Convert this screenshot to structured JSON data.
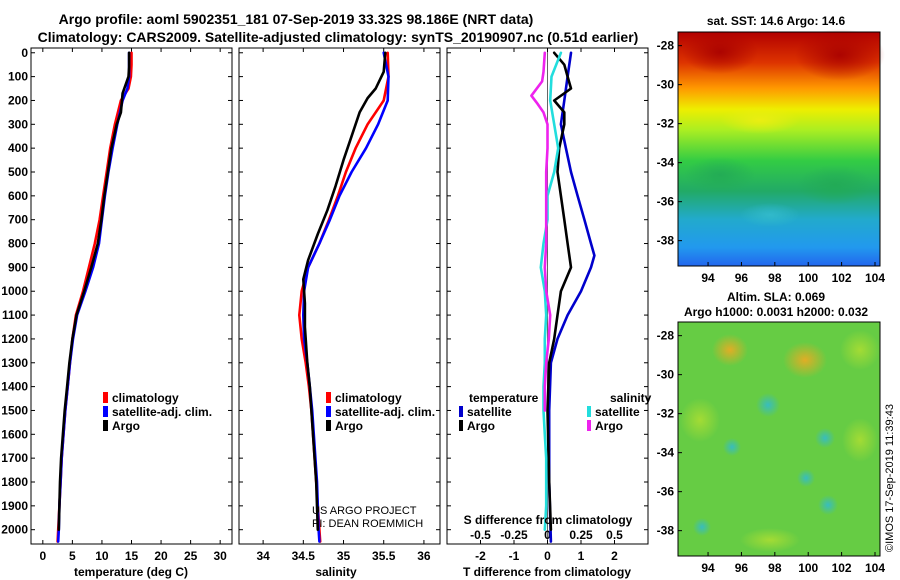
{
  "colors": {
    "climatology": "#ff0000",
    "satellite": "#0000ff",
    "argo": "#000000",
    "t_satellite": "#0000cc",
    "s_satellite": "#22dddd",
    "s_argo": "#ee22ee"
  },
  "title": {
    "line1": "Argo profile: aoml 5902351_181 07-Sep-2019 33.32S 98.186E (NRT data)",
    "line2": "Climatology: CARS2009. Satellite-adjusted climatology: synTS_20190907.nc (0.51d earlier)"
  },
  "depth_ticks": [
    "0",
    "100",
    "200",
    "300",
    "400",
    "500",
    "600",
    "700",
    "800",
    "900",
    "1000",
    "1100",
    "1200",
    "1300",
    "1400",
    "1500",
    "1600",
    "1700",
    "1800",
    "1900",
    "2000"
  ],
  "chart_data": [
    {
      "type": "line",
      "name": "temperature",
      "xlabel": "temperature (deg C)",
      "ylabel": "depth",
      "xlim": [
        -2,
        32
      ],
      "ylim": [
        2060,
        -20
      ],
      "xticks": [
        0,
        5,
        10,
        15,
        20,
        25,
        30
      ],
      "xtick_labels": [
        "0",
        "5",
        "10",
        "15",
        "20",
        "25",
        "30"
      ],
      "legend": [
        "climatology",
        "satellite-adj. clim.",
        "Argo"
      ],
      "series": [
        {
          "name": "climatology",
          "color": "climatology",
          "points": [
            [
              15,
              0
            ],
            [
              15,
              50
            ],
            [
              14.9,
              100
            ],
            [
              14.5,
              150
            ],
            [
              13.2,
              200
            ],
            [
              12.2,
              300
            ],
            [
              11.4,
              400
            ],
            [
              10.8,
              500
            ],
            [
              10.2,
              600
            ],
            [
              9.6,
              700
            ],
            [
              8.8,
              800
            ],
            [
              7.8,
              900
            ],
            [
              6.8,
              1000
            ],
            [
              5.6,
              1100
            ],
            [
              5,
              1200
            ],
            [
              4.6,
              1300
            ],
            [
              4.2,
              1400
            ],
            [
              3.8,
              1500
            ],
            [
              3.5,
              1600
            ],
            [
              3.2,
              1700
            ],
            [
              3,
              1800
            ],
            [
              2.8,
              1900
            ],
            [
              2.6,
              2000
            ],
            [
              2.5,
              2050
            ]
          ]
        },
        {
          "name": "satellite-adj. clim.",
          "color": "satellite",
          "points": [
            [
              14.6,
              0
            ],
            [
              14.6,
              50
            ],
            [
              14.6,
              100
            ],
            [
              14.3,
              150
            ],
            [
              13.5,
              200
            ],
            [
              12.6,
              300
            ],
            [
              11.8,
              400
            ],
            [
              11.1,
              500
            ],
            [
              10.5,
              600
            ],
            [
              10,
              700
            ],
            [
              9.5,
              800
            ],
            [
              8.5,
              900
            ],
            [
              7.2,
              1000
            ],
            [
              5.8,
              1100
            ],
            [
              5.1,
              1200
            ],
            [
              4.6,
              1300
            ],
            [
              4.2,
              1400
            ],
            [
              3.8,
              1500
            ],
            [
              3.5,
              1600
            ],
            [
              3.2,
              1700
            ],
            [
              3,
              1800
            ],
            [
              2.8,
              1900
            ],
            [
              2.7,
              2000
            ],
            [
              2.6,
              2050
            ]
          ]
        },
        {
          "name": "Argo",
          "color": "argo",
          "points": [
            [
              14.6,
              0
            ],
            [
              14.6,
              60
            ],
            [
              14.5,
              100
            ],
            [
              13.5,
              170
            ],
            [
              13.2,
              250
            ],
            [
              12.5,
              300
            ],
            [
              11.6,
              400
            ],
            [
              11,
              500
            ],
            [
              10.4,
              600
            ],
            [
              9.9,
              700
            ],
            [
              9.3,
              800
            ],
            [
              8.2,
              900
            ],
            [
              7,
              1000
            ],
            [
              5.7,
              1100
            ],
            [
              5,
              1200
            ],
            [
              4.5,
              1300
            ],
            [
              4.1,
              1400
            ],
            [
              3.7,
              1500
            ],
            [
              3.4,
              1600
            ],
            [
              3.1,
              1700
            ],
            [
              2.9,
              1800
            ],
            [
              2.8,
              1900
            ],
            [
              2.7,
              2000
            ]
          ]
        }
      ]
    },
    {
      "type": "line",
      "name": "salinity",
      "xlabel": "salinity",
      "ylabel": "depth",
      "xlim": [
        33.7,
        36.2
      ],
      "ylim": [
        2060,
        -20
      ],
      "xticks": [
        34,
        34.5,
        35,
        35.5,
        36
      ],
      "xtick_labels": [
        "34",
        "34.5",
        "35",
        "35.5",
        "36"
      ],
      "legend": [
        "climatology",
        "satellite-adj. clim.",
        "Argo"
      ],
      "credit": [
        "US ARGO PROJECT",
        "PI: DEAN ROEMMICH"
      ],
      "series": [
        {
          "name": "climatology",
          "color": "climatology",
          "points": [
            [
              35.55,
              0
            ],
            [
              35.56,
              100
            ],
            [
              35.5,
              200
            ],
            [
              35.3,
              300
            ],
            [
              35.15,
              400
            ],
            [
              35.03,
              500
            ],
            [
              34.93,
              600
            ],
            [
              34.82,
              700
            ],
            [
              34.7,
              800
            ],
            [
              34.56,
              900
            ],
            [
              34.48,
              1000
            ],
            [
              34.45,
              1100
            ],
            [
              34.48,
              1200
            ],
            [
              34.53,
              1300
            ],
            [
              34.57,
              1400
            ],
            [
              34.6,
              1500
            ],
            [
              34.62,
              1600
            ],
            [
              34.64,
              1700
            ],
            [
              34.66,
              1800
            ],
            [
              34.68,
              1900
            ],
            [
              34.7,
              2000
            ],
            [
              34.71,
              2050
            ]
          ]
        },
        {
          "name": "satellite-adj. clim.",
          "color": "satellite",
          "points": [
            [
              35.5,
              0
            ],
            [
              35.56,
              100
            ],
            [
              35.55,
              200
            ],
            [
              35.43,
              300
            ],
            [
              35.28,
              400
            ],
            [
              35.1,
              500
            ],
            [
              34.95,
              600
            ],
            [
              34.83,
              700
            ],
            [
              34.7,
              800
            ],
            [
              34.56,
              900
            ],
            [
              34.51,
              1000
            ],
            [
              34.5,
              1100
            ],
            [
              34.51,
              1200
            ],
            [
              34.55,
              1300
            ],
            [
              34.58,
              1400
            ],
            [
              34.61,
              1500
            ],
            [
              34.63,
              1600
            ],
            [
              34.65,
              1700
            ],
            [
              34.67,
              1800
            ],
            [
              34.68,
              1900
            ],
            [
              34.69,
              2000
            ],
            [
              34.7,
              2050
            ]
          ]
        },
        {
          "name": "Argo",
          "color": "argo",
          "points": [
            [
              35.52,
              0
            ],
            [
              35.5,
              80
            ],
            [
              35.4,
              150
            ],
            [
              35.3,
              190
            ],
            [
              35.2,
              250
            ],
            [
              35.1,
              350
            ],
            [
              35.0,
              450
            ],
            [
              34.9,
              560
            ],
            [
              34.8,
              660
            ],
            [
              34.68,
              760
            ],
            [
              34.56,
              870
            ],
            [
              34.5,
              950
            ],
            [
              34.52,
              1050
            ],
            [
              34.52,
              1150
            ],
            [
              34.55,
              1300
            ],
            [
              34.58,
              1400
            ],
            [
              34.6,
              1500
            ],
            [
              34.62,
              1600
            ],
            [
              34.64,
              1700
            ],
            [
              34.66,
              1800
            ],
            [
              34.67,
              1900
            ],
            [
              34.68,
              2000
            ]
          ]
        }
      ]
    },
    {
      "type": "line",
      "name": "differences",
      "xlabel_bottom": "T difference from climatology",
      "xlabel_top": "S difference from climatology",
      "ylabel": "depth",
      "xlim": [
        -3,
        3
      ],
      "ylim": [
        2060,
        -20
      ],
      "xticks": [
        -2,
        -1,
        0,
        1,
        2
      ],
      "xtick_labels": [
        "-2",
        "-1",
        "0",
        "1",
        "2"
      ],
      "s_xticks": [
        -0.5,
        -0.25,
        0,
        0.25,
        0.5
      ],
      "s_xtick_labels": [
        "-0.5",
        "-0.25",
        "0",
        "0.25",
        "0.5"
      ],
      "s_scale": 4,
      "legend_temperature": {
        "title": "temperature",
        "items": [
          "satellite",
          "Argo"
        ]
      },
      "legend_salinity": {
        "title": "salinity",
        "items": [
          "satellite",
          "Argo"
        ]
      },
      "series": [
        {
          "name": "T satellite",
          "color": "t_satellite",
          "points": [
            [
              0.7,
              0
            ],
            [
              0.6,
              100
            ],
            [
              0.5,
              200
            ],
            [
              0.4,
              300
            ],
            [
              0.55,
              400
            ],
            [
              0.7,
              500
            ],
            [
              0.9,
              600
            ],
            [
              1.1,
              700
            ],
            [
              1.3,
              800
            ],
            [
              1.4,
              850
            ],
            [
              1.3,
              900
            ],
            [
              1.0,
              1000
            ],
            [
              0.6,
              1100
            ],
            [
              0.3,
              1200
            ],
            [
              0.1,
              1300
            ],
            [
              0.05,
              1500
            ],
            [
              0.05,
              1800
            ],
            [
              0.1,
              2050
            ]
          ]
        },
        {
          "name": "T Argo",
          "color": "argo",
          "points": [
            [
              0.2,
              0
            ],
            [
              0.5,
              50
            ],
            [
              0.6,
              100
            ],
            [
              0.7,
              150
            ],
            [
              0.2,
              200
            ],
            [
              0.5,
              250
            ],
            [
              0.5,
              300
            ],
            [
              0.35,
              400
            ],
            [
              0.3,
              500
            ],
            [
              0.4,
              600
            ],
            [
              0.5,
              700
            ],
            [
              0.6,
              800
            ],
            [
              0.7,
              900
            ],
            [
              0.4,
              1000
            ],
            [
              0.3,
              1100
            ],
            [
              0.2,
              1200
            ],
            [
              0.05,
              1300
            ],
            [
              0.0,
              1500
            ],
            [
              0.05,
              1800
            ],
            [
              0.1,
              2000
            ]
          ]
        },
        {
          "name": "S satellite",
          "color": "s_satellite",
          "points": [
            [
              0.1,
              0
            ],
            [
              0.03,
              100
            ],
            [
              0.02,
              200
            ],
            [
              0.05,
              300
            ],
            [
              0.08,
              400
            ],
            [
              0.05,
              500
            ],
            [
              0.0,
              600
            ],
            [
              0.0,
              700
            ],
            [
              -0.03,
              800
            ],
            [
              -0.05,
              900
            ],
            [
              -0.02,
              1000
            ],
            [
              -0.01,
              1100
            ],
            [
              -0.02,
              1200
            ],
            [
              -0.02,
              1300
            ],
            [
              -0.03,
              1400
            ],
            [
              -0.03,
              1500
            ],
            [
              -0.02,
              1600
            ],
            [
              -0.01,
              1700
            ],
            [
              -0.01,
              1800
            ],
            [
              -0.01,
              1900
            ],
            [
              -0.02,
              2000
            ]
          ]
        },
        {
          "name": "S Argo",
          "color": "s_argo",
          "points": [
            [
              -0.02,
              0
            ],
            [
              -0.03,
              80
            ],
            [
              -0.04,
              120
            ],
            [
              -0.12,
              180
            ],
            [
              -0.08,
              210
            ],
            [
              -0.03,
              250
            ],
            [
              0.0,
              300
            ],
            [
              0.0,
              400
            ],
            [
              -0.01,
              500
            ],
            [
              -0.01,
              600
            ],
            [
              -0.01,
              700
            ],
            [
              -0.01,
              800
            ],
            [
              -0.02,
              900
            ],
            [
              -0.01,
              1000
            ],
            [
              0.02,
              1100
            ],
            [
              0.01,
              1200
            ],
            [
              -0.01,
              1300
            ],
            [
              -0.02,
              1400
            ],
            [
              -0.02,
              1500
            ]
          ]
        }
      ]
    },
    {
      "type": "heatmap",
      "name": "sst-map",
      "title": "sat. SST: 14.6 Argo: 14.6",
      "xlim": [
        92.2,
        104.3
      ],
      "ylim": [
        -39.3,
        -27.3
      ],
      "xticks": [
        94,
        96,
        98,
        100,
        102,
        104
      ],
      "xtick_labels": [
        "94",
        "96",
        "98",
        "100",
        "102",
        "104"
      ],
      "yticks": [
        -28,
        -30,
        -32,
        -34,
        -36,
        -38
      ],
      "ytick_labels": [
        "-28",
        "-30",
        "-32",
        "-34",
        "-36",
        "-38"
      ]
    },
    {
      "type": "heatmap",
      "name": "sla-map",
      "title": "Altim. SLA: 0.069",
      "subtitle": "Argo h1000: 0.0031 h2000: 0.032",
      "xlim": [
        92.2,
        104.3
      ],
      "ylim": [
        -39.3,
        -27.3
      ],
      "xticks": [
        94,
        96,
        98,
        100,
        102,
        104
      ],
      "xtick_labels": [
        "94",
        "96",
        "98",
        "100",
        "102",
        "104"
      ],
      "yticks": [
        -28,
        -30,
        -32,
        -34,
        -36,
        -38
      ],
      "ytick_labels": [
        "-28",
        "-30",
        "-32",
        "-34",
        "-36",
        "-38"
      ]
    }
  ],
  "footer": "©IMOS 17-Sep-2019 11:39:43"
}
